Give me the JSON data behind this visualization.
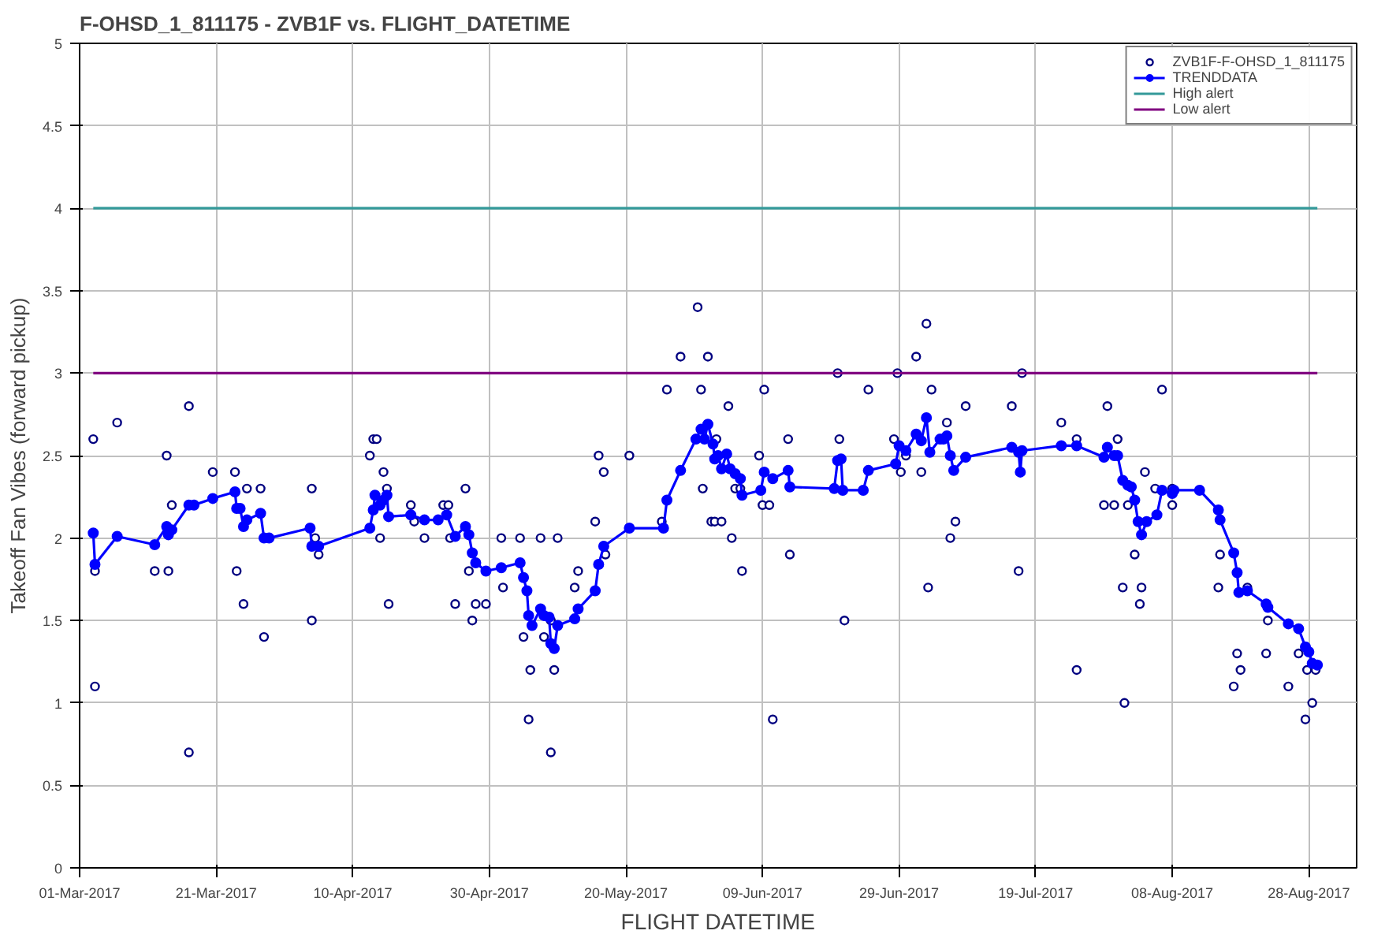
{
  "chart_data": {
    "type": "scatter",
    "title": "F-OHSD_1_811175 -  ZVB1F vs. FLIGHT_DATETIME",
    "xlabel": "FLIGHT DATETIME",
    "ylabel": "Takeoff Fan Vibes (forward pickup)",
    "xlim": [
      "2017-03-01",
      "2017-09-04"
    ],
    "ylim": [
      0,
      5
    ],
    "xticks": [
      {
        "value": "2017-03-01",
        "label": "01-Mar-2017"
      },
      {
        "value": "2017-03-21",
        "label": "21-Mar-2017"
      },
      {
        "value": "2017-04-10",
        "label": "10-Apr-2017"
      },
      {
        "value": "2017-04-30",
        "label": "30-Apr-2017"
      },
      {
        "value": "2017-05-20",
        "label": "20-May-2017"
      },
      {
        "value": "2017-06-09",
        "label": "09-Jun-2017"
      },
      {
        "value": "2017-06-29",
        "label": "29-Jun-2017"
      },
      {
        "value": "2017-07-19",
        "label": "19-Jul-2017"
      },
      {
        "value": "2017-08-08",
        "label": "08-Aug-2017"
      },
      {
        "value": "2017-08-28",
        "label": "28-Aug-2017"
      }
    ],
    "yticks": [
      0,
      0.5,
      1,
      1.5,
      2,
      2.5,
      3,
      3.5,
      4,
      4.5,
      5
    ],
    "grid": true,
    "legend": "top right",
    "series": [
      {
        "name": "ZVB1F-F-OHSD_1_811175",
        "marker": "circle",
        "color": "#000080",
        "x": [
          "2017-03-03",
          "2017-03-03T06:00",
          "2017-03-03T06:00",
          "2017-03-06T12:00",
          "2017-03-12",
          "2017-03-13T18:00",
          "2017-03-14",
          "2017-03-14T12:00",
          "2017-03-17",
          "2017-03-17",
          "2017-03-20T12:00",
          "2017-03-23T18:00",
          "2017-03-24",
          "2017-03-25",
          "2017-03-25T12:00",
          "2017-03-27T12:00",
          "2017-03-28",
          "2017-04-04",
          "2017-04-04",
          "2017-04-04T12:00",
          "2017-04-05",
          "2017-04-12T12:00",
          "2017-04-13",
          "2017-04-13T12:00",
          "2017-04-14T12:00",
          "2017-04-15",
          "2017-04-14",
          "2017-04-15T06:00",
          "2017-04-18T12:00",
          "2017-04-19",
          "2017-04-20T12:00",
          "2017-04-23T06:00",
          "2017-04-24",
          "2017-04-24T06:00",
          "2017-04-25",
          "2017-04-26T12:00",
          "2017-04-27",
          "2017-04-27T12:00",
          "2017-04-28",
          "2017-04-29T12:00",
          "2017-05-01T18:00",
          "2017-05-04T12:00",
          "2017-05-02",
          "2017-05-05",
          "2017-05-07T12:00",
          "2017-05-08",
          "2017-05-06",
          "2017-05-05T18:00",
          "2017-05-09T12:00",
          "2017-05-09",
          "2017-05-10",
          "2017-05-09",
          "2017-05-12T12:00",
          "2017-05-13",
          "2017-05-15T12:00",
          "2017-05-16",
          "2017-05-16T18:00",
          "2017-05-17",
          "2017-05-20T12:00",
          "2017-05-25T06:00",
          "2017-05-26",
          "2017-05-28",
          "2017-05-30T12:00",
          "2017-05-31",
          "2017-06-01",
          "2017-05-31T06:00",
          "2017-06-02T06:00",
          "2017-06-04",
          "2017-06-01T12:00",
          "2017-06-02",
          "2017-06-03",
          "2017-06-04T12:00",
          "2017-06-05",
          "2017-06-05T18:00",
          "2017-06-06",
          "2017-06-08T12:00",
          "2017-06-09T06:00",
          "2017-06-09",
          "2017-06-10",
          "2017-06-10T12:00",
          "2017-06-12T18:00",
          "2017-06-13",
          "2017-06-20",
          "2017-06-20T06:00",
          "2017-06-21",
          "2017-06-24T12:00",
          "2017-06-28T06:00",
          "2017-06-28T18:00",
          "2017-06-29T06:00",
          "2017-06-30",
          "2017-07-01T12:00",
          "2017-07-03",
          "2017-07-02T06:00",
          "2017-07-03T18:00",
          "2017-07-03T06:00",
          "2017-07-06",
          "2017-07-08T18:00",
          "2017-07-07T06:00",
          "2017-07-06T12:00",
          "2017-07-17",
          "2017-07-15T12:00",
          "2017-07-16T12:00",
          "2017-07-22T18:00",
          "2017-07-25",
          "2017-07-25",
          "2017-07-29T12:00",
          "2017-07-31",
          "2017-07-29",
          "2017-07-30T12:00",
          "2017-08-01T12:00",
          "2017-08-04",
          "2017-08-02T12:00",
          "2017-07-31T18:00",
          "2017-08-03T12:00",
          "2017-08-03T06:00",
          "2017-08-01",
          "2017-08-06T12:00",
          "2017-08-05T12:00",
          "2017-08-08",
          "2017-08-08",
          "2017-08-15",
          "2017-08-14T18:00",
          "2017-08-19",
          "2017-08-22",
          "2017-08-17T12:00",
          "2017-08-18",
          "2017-08-17",
          "2017-08-21T18:00",
          "2017-08-25",
          "2017-08-26T12:00",
          "2017-08-27T18:00",
          "2017-08-29",
          "2017-08-28T12:00",
          "2017-08-27T12:00"
        ],
        "values": [
          2.6,
          1.1,
          1.8,
          2.7,
          1.8,
          2.5,
          1.8,
          2.2,
          2.8,
          0.7,
          2.4,
          2.4,
          1.8,
          1.6,
          2.3,
          2.3,
          1.4,
          2.3,
          1.5,
          2.0,
          1.9,
          2.5,
          2.6,
          2.6,
          2.4,
          2.3,
          2.0,
          1.6,
          2.2,
          2.1,
          2.0,
          2.2,
          2.2,
          2.0,
          1.6,
          2.3,
          1.8,
          1.5,
          1.6,
          1.6,
          2.0,
          2.0,
          1.7,
          1.4,
          2.0,
          1.4,
          1.2,
          0.9,
          1.2,
          0.7,
          2.0,
          1.5,
          1.7,
          1.8,
          2.1,
          2.5,
          2.4,
          1.9,
          2.5,
          2.1,
          2.9,
          3.1,
          3.4,
          2.9,
          3.1,
          2.3,
          2.6,
          2.8,
          2.1,
          2.1,
          2.1,
          2.0,
          2.3,
          2.3,
          1.8,
          2.5,
          2.9,
          2.2,
          2.2,
          0.9,
          2.6,
          1.9,
          3.0,
          2.6,
          1.5,
          2.9,
          2.6,
          3.0,
          2.4,
          2.5,
          3.1,
          3.3,
          2.4,
          2.9,
          1.7,
          2.7,
          2.8,
          2.1,
          2.0,
          3.0,
          2.8,
          1.8,
          2.7,
          2.6,
          1.2,
          2.8,
          2.6,
          2.2,
          2.2,
          2.2,
          2.4,
          1.9,
          1.7,
          1.7,
          1.6,
          1.0,
          2.9,
          2.3,
          2.3,
          2.2,
          1.9,
          1.7,
          1.7,
          1.5,
          1.3,
          1.2,
          1.1,
          1.3,
          1.1,
          1.3,
          1.2,
          1.2,
          1.0,
          0.9
        ]
      },
      {
        "name": "TRENDDATA",
        "type": "line",
        "marker": "circle",
        "color": "#0000ff",
        "x": [
          "2017-03-03",
          "2017-03-03T06:00",
          "2017-03-06T12:00",
          "2017-03-12",
          "2017-03-13T18:00",
          "2017-03-14",
          "2017-03-14T12:00",
          "2017-03-17",
          "2017-03-17T18:00",
          "2017-03-20T12:00",
          "2017-03-23T18:00",
          "2017-03-24",
          "2017-03-24T12:00",
          "2017-03-25",
          "2017-03-25T12:00",
          "2017-03-27T12:00",
          "2017-03-28",
          "2017-03-28T18:00",
          "2017-04-03T18:00",
          "2017-04-04",
          "2017-04-05",
          "2017-04-12T12:00",
          "2017-04-13",
          "2017-04-13T06:00",
          "2017-04-14",
          "2017-04-14T12:00",
          "2017-04-15",
          "2017-04-15T06:00",
          "2017-04-18T12:00",
          "2017-04-20T12:00",
          "2017-04-22T12:00",
          "2017-04-23T18:00",
          "2017-04-25",
          "2017-04-26T12:00",
          "2017-04-27",
          "2017-04-27T12:00",
          "2017-04-28",
          "2017-04-29T12:00",
          "2017-05-01T18:00",
          "2017-05-04T12:00",
          "2017-05-05",
          "2017-05-05T12:00",
          "2017-05-05T18:00",
          "2017-05-06T06:00",
          "2017-05-07T12:00",
          "2017-05-08",
          "2017-05-08T18:00",
          "2017-05-09",
          "2017-05-09T12:00",
          "2017-05-10",
          "2017-05-12T12:00",
          "2017-05-13",
          "2017-05-15T12:00",
          "2017-05-16",
          "2017-05-16T18:00",
          "2017-05-20T12:00",
          "2017-05-25T12:00",
          "2017-05-26",
          "2017-05-28",
          "2017-05-30T06:00",
          "2017-05-31",
          "2017-05-31T12:00",
          "2017-06-01",
          "2017-06-01T18:00",
          "2017-06-02",
          "2017-06-02T12:00",
          "2017-06-03",
          "2017-06-03T18:00",
          "2017-06-04T06:00",
          "2017-06-05",
          "2017-06-05T18:00",
          "2017-06-06",
          "2017-06-08T18:00",
          "2017-06-09T06:00",
          "2017-06-10T12:00",
          "2017-06-12T18:00",
          "2017-06-13",
          "2017-06-19T12:00",
          "2017-06-20",
          "2017-06-20T12:00",
          "2017-06-20T18:00",
          "2017-06-23T18:00",
          "2017-06-24T12:00",
          "2017-06-28T12:00",
          "2017-06-29",
          "2017-06-30",
          "2017-07-01T12:00",
          "2017-07-02T06:00",
          "2017-07-03",
          "2017-07-03T12:00",
          "2017-07-05",
          "2017-07-05T12:00",
          "2017-07-06",
          "2017-07-06T12:00",
          "2017-07-07",
          "2017-07-08T18:00",
          "2017-07-15T12:00",
          "2017-07-16T12:00",
          "2017-07-16T18:00",
          "2017-07-17",
          "2017-07-22T18:00",
          "2017-07-25",
          "2017-07-29",
          "2017-07-29T12:00",
          "2017-07-30T12:00",
          "2017-07-31",
          "2017-07-31T18:00",
          "2017-08-01T12:00",
          "2017-08-02",
          "2017-08-02T12:00",
          "2017-08-03",
          "2017-08-03T12:00",
          "2017-08-04T06:00",
          "2017-08-05T18:00",
          "2017-08-06T12:00",
          "2017-08-08",
          "2017-08-08T06:00",
          "2017-08-12",
          "2017-08-14T18:00",
          "2017-08-15",
          "2017-08-17",
          "2017-08-17T12:00",
          "2017-08-17T18:00",
          "2017-08-19",
          "2017-08-21T18:00",
          "2017-08-22",
          "2017-08-25",
          "2017-08-26T12:00",
          "2017-08-27T12:00",
          "2017-08-28",
          "2017-08-28T12:00",
          "2017-08-29T06:00"
        ],
        "values": [
          2.03,
          1.84,
          2.01,
          1.96,
          2.07,
          2.02,
          2.05,
          2.2,
          2.2,
          2.24,
          2.28,
          2.18,
          2.18,
          2.07,
          2.11,
          2.15,
          2.0,
          2.0,
          2.06,
          1.95,
          1.95,
          2.06,
          2.17,
          2.26,
          2.2,
          2.23,
          2.26,
          2.13,
          2.14,
          2.11,
          2.11,
          2.14,
          2.01,
          2.07,
          2.02,
          1.91,
          1.85,
          1.8,
          1.82,
          1.85,
          1.76,
          1.68,
          1.53,
          1.47,
          1.57,
          1.53,
          1.52,
          1.36,
          1.33,
          1.47,
          1.51,
          1.57,
          1.68,
          1.84,
          1.95,
          2.06,
          2.06,
          2.23,
          2.41,
          2.6,
          2.66,
          2.6,
          2.69,
          2.57,
          2.48,
          2.5,
          2.42,
          2.51,
          2.42,
          2.39,
          2.36,
          2.26,
          2.29,
          2.4,
          2.36,
          2.41,
          2.31,
          2.3,
          2.47,
          2.48,
          2.29,
          2.29,
          2.41,
          2.45,
          2.56,
          2.53,
          2.63,
          2.59,
          2.73,
          2.52,
          2.6,
          2.6,
          2.62,
          2.5,
          2.41,
          2.49,
          2.55,
          2.52,
          2.4,
          2.53,
          2.56,
          2.56,
          2.49,
          2.55,
          2.5,
          2.5,
          2.35,
          2.32,
          2.31,
          2.23,
          2.1,
          2.02,
          2.1,
          2.14,
          2.29,
          2.27,
          2.29,
          2.29,
          2.17,
          2.11,
          1.91,
          1.79,
          1.67,
          1.68,
          1.6,
          1.58,
          1.48,
          1.45,
          1.34,
          1.31,
          1.24,
          1.23
        ]
      },
      {
        "name": "High alert",
        "type": "line",
        "marker": "none",
        "color": "#339999",
        "x": [
          "2017-03-03",
          "2017-08-29T06:00"
        ],
        "values": [
          4,
          4
        ]
      },
      {
        "name": "Low alert",
        "type": "line",
        "marker": "none",
        "color": "#800080",
        "x": [
          "2017-03-03",
          "2017-08-29T06:00"
        ],
        "values": [
          3,
          3
        ]
      }
    ]
  }
}
